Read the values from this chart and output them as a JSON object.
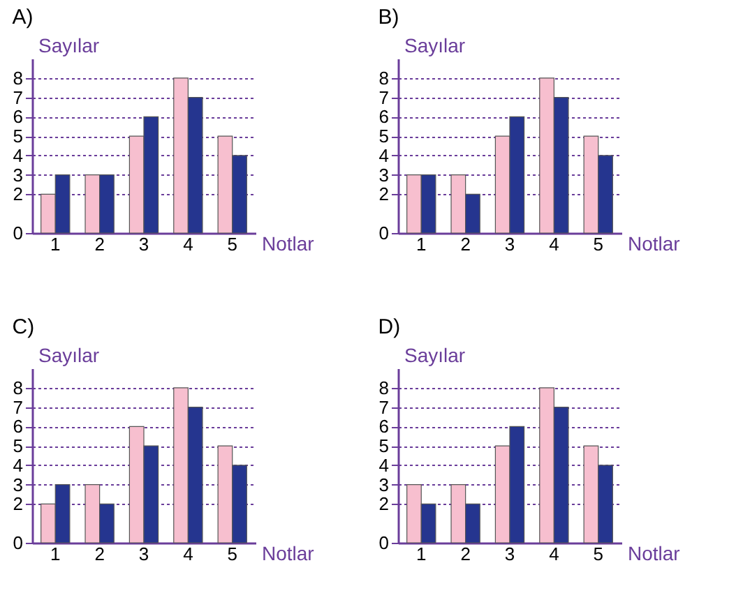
{
  "chart_data": [
    {
      "type": "bar",
      "title": "A)",
      "xlabel": "Notlar",
      "ylabel": "Sayılar",
      "categories": [
        "1",
        "2",
        "3",
        "4",
        "5"
      ],
      "series": [
        {
          "color": "#f7bfcf",
          "values": [
            2,
            3,
            5,
            8,
            5
          ]
        },
        {
          "color": "#25358f",
          "values": [
            3,
            3,
            6,
            7,
            4
          ]
        }
      ],
      "ylim": [
        0,
        9
      ],
      "yticks": [
        0,
        2,
        3,
        4,
        5,
        6,
        7,
        8
      ],
      "grid": "y"
    },
    {
      "type": "bar",
      "title": "B)",
      "xlabel": "Notlar",
      "ylabel": "Sayılar",
      "categories": [
        "1",
        "2",
        "3",
        "4",
        "5"
      ],
      "series": [
        {
          "color": "#f7bfcf",
          "values": [
            3,
            3,
            5,
            8,
            5
          ]
        },
        {
          "color": "#25358f",
          "values": [
            3,
            2,
            6,
            7,
            4
          ]
        }
      ],
      "ylim": [
        0,
        9
      ],
      "yticks": [
        0,
        2,
        3,
        4,
        5,
        6,
        7,
        8
      ],
      "grid": "y"
    },
    {
      "type": "bar",
      "title": "C)",
      "xlabel": "Notlar",
      "ylabel": "Sayılar",
      "categories": [
        "1",
        "2",
        "3",
        "4",
        "5"
      ],
      "series": [
        {
          "color": "#f7bfcf",
          "values": [
            2,
            3,
            6,
            8,
            5
          ]
        },
        {
          "color": "#25358f",
          "values": [
            3,
            2,
            5,
            7,
            4
          ]
        }
      ],
      "ylim": [
        0,
        9
      ],
      "yticks": [
        0,
        2,
        3,
        4,
        5,
        6,
        7,
        8
      ],
      "grid": "y"
    },
    {
      "type": "bar",
      "title": "D)",
      "xlabel": "Notlar",
      "ylabel": "Sayılar",
      "categories": [
        "1",
        "2",
        "3",
        "4",
        "5"
      ],
      "series": [
        {
          "color": "#f7bfcf",
          "values": [
            3,
            3,
            5,
            8,
            5
          ]
        },
        {
          "color": "#25358f",
          "values": [
            2,
            2,
            6,
            7,
            4
          ]
        }
      ],
      "ylim": [
        0,
        9
      ],
      "yticks": [
        0,
        2,
        3,
        4,
        5,
        6,
        7,
        8
      ],
      "grid": "y"
    }
  ]
}
